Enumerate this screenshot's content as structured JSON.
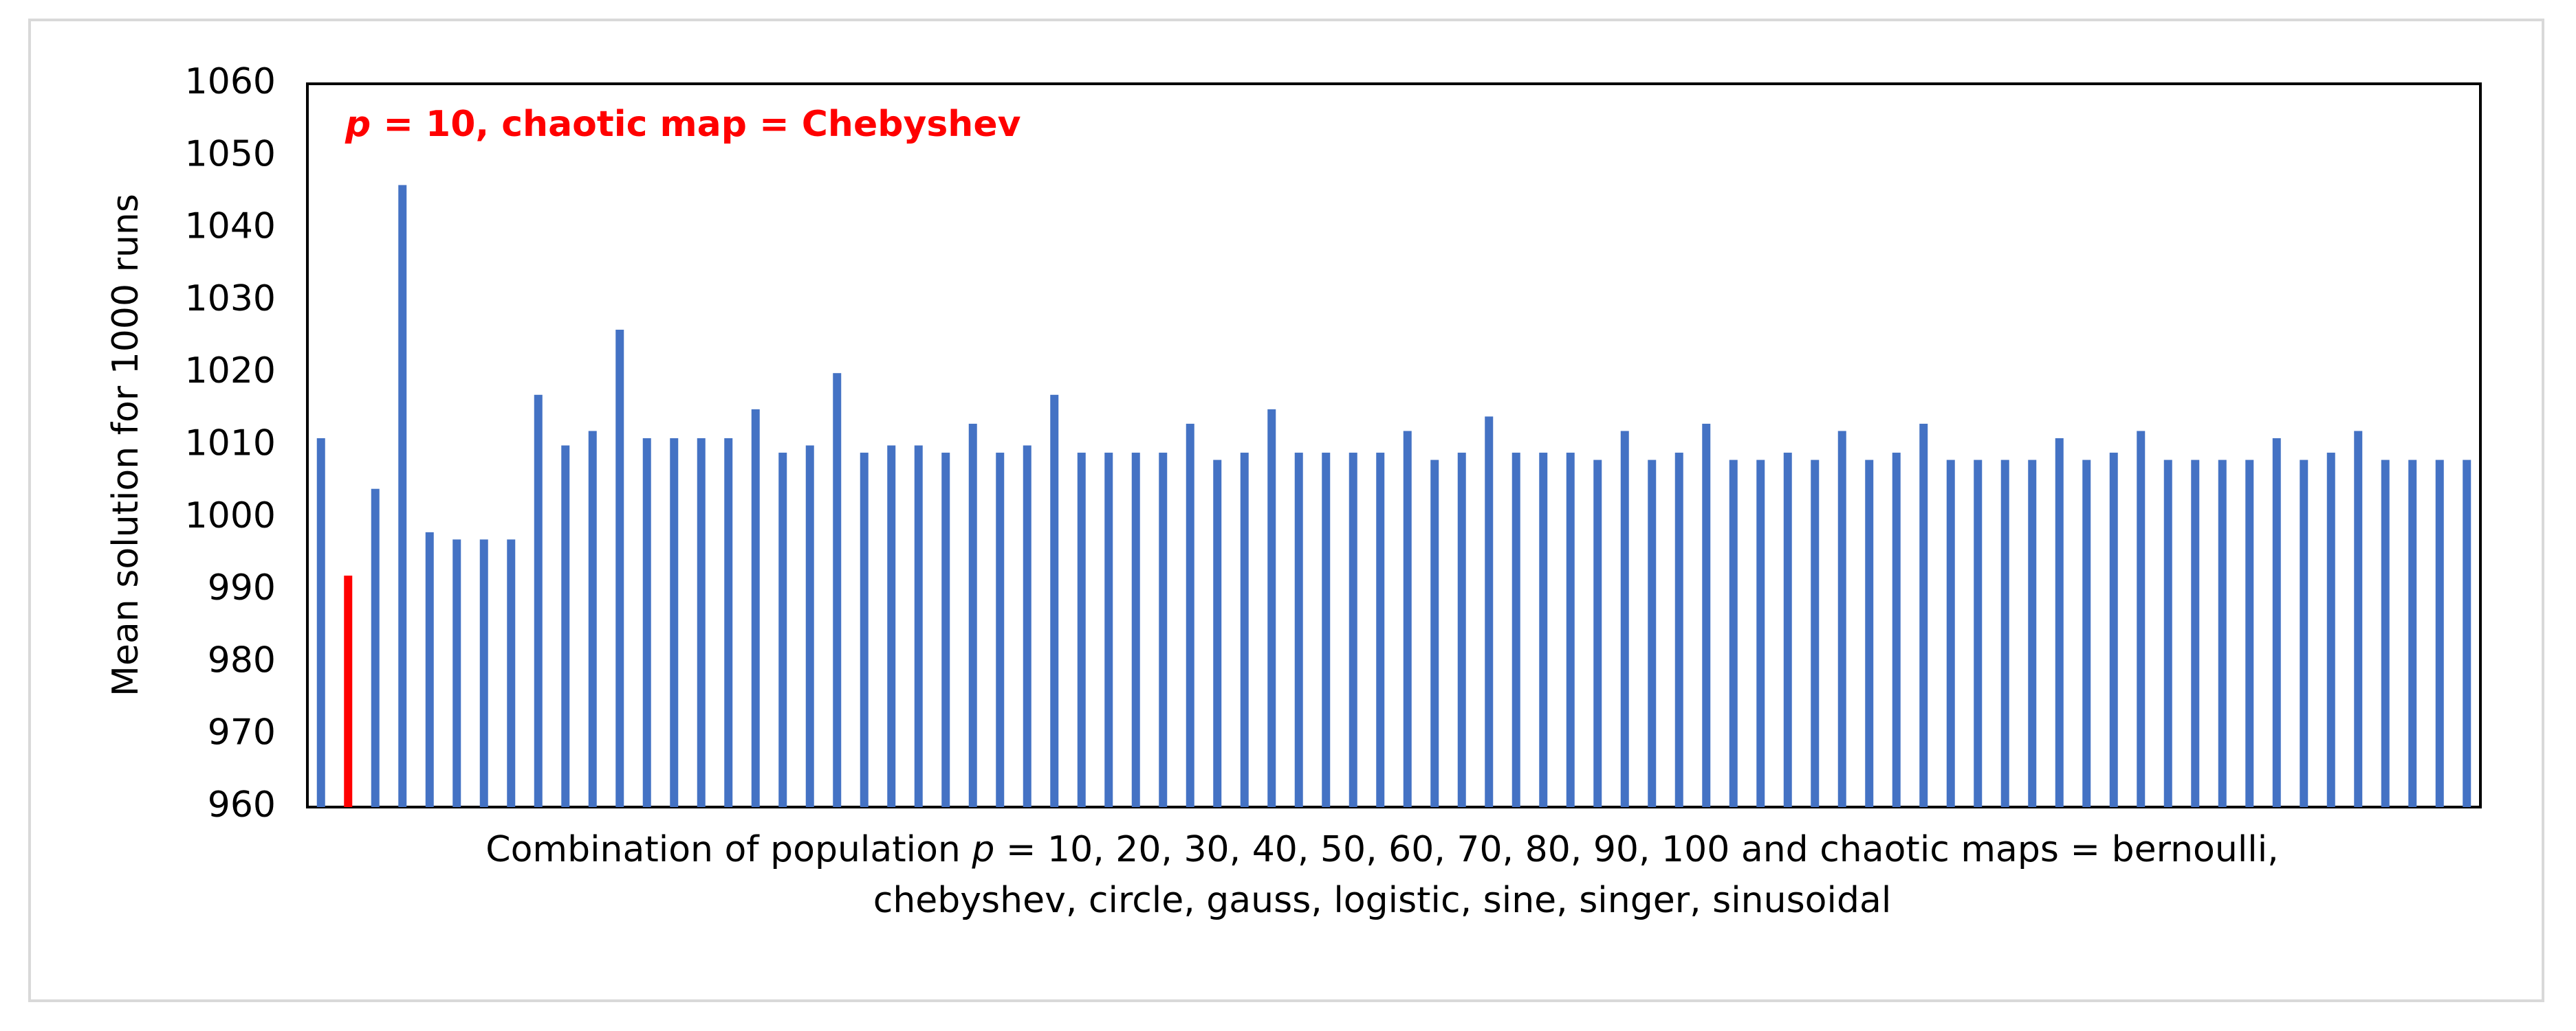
{
  "chart_data": {
    "type": "bar",
    "annotation": [
      "p",
      " = 10, chaotic map = Chebyshev"
    ],
    "annotation_color": "#ff0000",
    "y_label": "Mean solution for 1000 runs",
    "x_label": [
      [
        "Combination of population ",
        "p",
        " = 10, 20, 30, 40, 50, 60, 70, 80, 90, 100 and chaotic maps = bernoulli,"
      ],
      [
        "chebyshev, circle, gauss, logistic, sine, singer, sinusoidal"
      ]
    ],
    "values": [
      1011,
      992,
      1004,
      1046,
      998,
      997,
      997,
      997,
      1017,
      1010,
      1012,
      1026,
      1011,
      1011,
      1011,
      1011,
      1015,
      1009,
      1010,
      1020,
      1009,
      1010,
      1010,
      1009,
      1013,
      1009,
      1010,
      1017,
      1009,
      1009,
      1009,
      1009,
      1013,
      1008,
      1009,
      1015,
      1009,
      1009,
      1009,
      1009,
      1012,
      1008,
      1009,
      1014,
      1009,
      1009,
      1009,
      1008,
      1012,
      1008,
      1009,
      1013,
      1008,
      1008,
      1009,
      1008,
      1012,
      1008,
      1009,
      1013,
      1008,
      1008,
      1008,
      1008,
      1011,
      1008,
      1009,
      1012,
      1008,
      1008,
      1008,
      1008,
      1011,
      1008,
      1009,
      1012,
      1008,
      1008,
      1008,
      1008
    ],
    "colors": [
      "#4472c4",
      "#ff0000",
      "#4472c4",
      "#4472c4",
      "#4472c4",
      "#4472c4",
      "#4472c4",
      "#4472c4",
      "#4472c4",
      "#4472c4",
      "#4472c4",
      "#4472c4",
      "#4472c4",
      "#4472c4",
      "#4472c4",
      "#4472c4",
      "#4472c4",
      "#4472c4",
      "#4472c4",
      "#4472c4",
      "#4472c4",
      "#4472c4",
      "#4472c4",
      "#4472c4",
      "#4472c4",
      "#4472c4",
      "#4472c4",
      "#4472c4",
      "#4472c4",
      "#4472c4",
      "#4472c4",
      "#4472c4",
      "#4472c4",
      "#4472c4",
      "#4472c4",
      "#4472c4",
      "#4472c4",
      "#4472c4",
      "#4472c4",
      "#4472c4",
      "#4472c4",
      "#4472c4",
      "#4472c4",
      "#4472c4",
      "#4472c4",
      "#4472c4",
      "#4472c4",
      "#4472c4",
      "#4472c4",
      "#4472c4",
      "#4472c4",
      "#4472c4",
      "#4472c4",
      "#4472c4",
      "#4472c4",
      "#4472c4",
      "#4472c4",
      "#4472c4",
      "#4472c4",
      "#4472c4",
      "#4472c4",
      "#4472c4",
      "#4472c4",
      "#4472c4",
      "#4472c4",
      "#4472c4",
      "#4472c4",
      "#4472c4",
      "#4472c4",
      "#4472c4",
      "#4472c4",
      "#4472c4",
      "#4472c4",
      "#4472c4",
      "#4472c4",
      "#4472c4",
      "#4472c4",
      "#4472c4",
      "#4472c4",
      "#4472c4"
    ],
    "ylim": [
      960,
      1060
    ],
    "yticks": [
      960,
      970,
      980,
      990,
      1000,
      1010,
      1020,
      1030,
      1040,
      1050,
      1060
    ],
    "grid": false
  }
}
